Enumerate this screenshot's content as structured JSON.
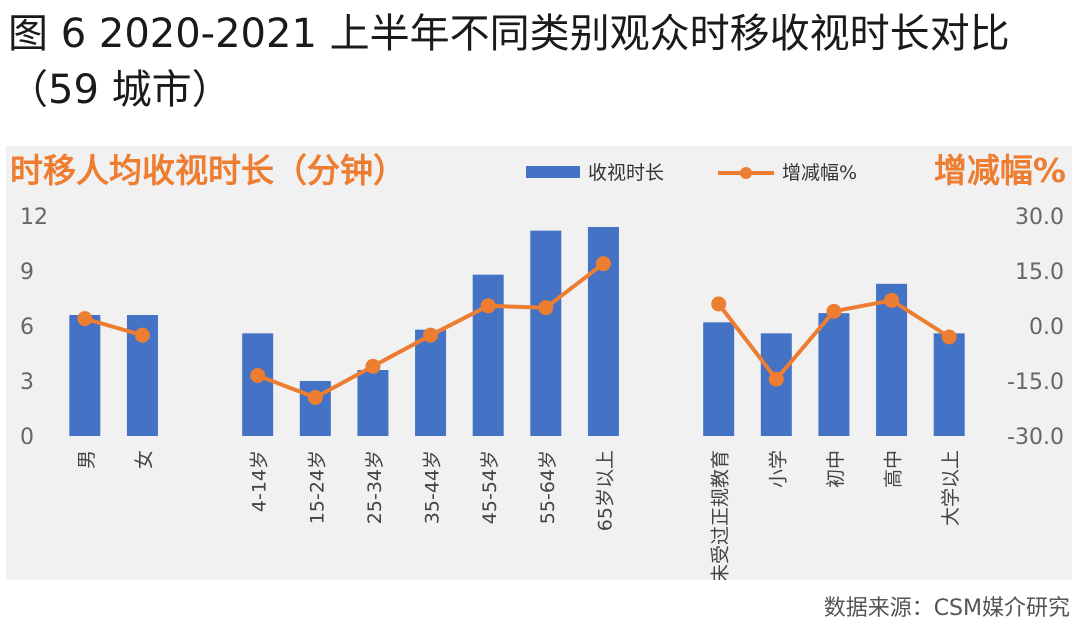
{
  "figure": {
    "title": "图 6 2020-2021 上半年不同类别观众时移收视时长对比（59 城市）",
    "source": "数据来源：CSM媒介研究"
  },
  "chart_data": {
    "type": "bar",
    "title": "",
    "y_left_label": "时移人均收视时长（分钟）",
    "y_right_label": "增减幅%",
    "legend_position": "top",
    "categories": [
      "男",
      "女",
      "4-14岁",
      "15-24岁",
      "25-34岁",
      "35-44岁",
      "45-54岁",
      "55-64岁",
      "65岁以上",
      "未受过正规教育",
      "小学",
      "初中",
      "高中",
      "大学以上"
    ],
    "group_breaks_after": [
      1,
      8
    ],
    "y_left_ticks": [
      "0",
      "3",
      "6",
      "9",
      "12"
    ],
    "y_left_lim": [
      0,
      12
    ],
    "y_right_ticks": [
      "-30.0",
      "-15.0",
      "0.0",
      "15.0",
      "30.0"
    ],
    "y_right_lim": [
      -30,
      30
    ],
    "series": [
      {
        "name": "收视时长",
        "type": "bar",
        "axis": "left",
        "color": "#4472c4",
        "values": [
          6.6,
          6.6,
          5.6,
          3.0,
          3.6,
          5.8,
          8.8,
          11.2,
          11.4,
          6.2,
          5.6,
          6.7,
          8.3,
          5.6
        ]
      },
      {
        "name": "增减幅%",
        "type": "line",
        "axis": "right",
        "color": "#ed7d31",
        "values": [
          2.0,
          -2.5,
          -13.5,
          -19.5,
          -11.0,
          -2.5,
          5.5,
          5.0,
          17.0,
          6.0,
          -14.5,
          4.0,
          7.0,
          -3.0
        ]
      }
    ],
    "grid": false
  }
}
